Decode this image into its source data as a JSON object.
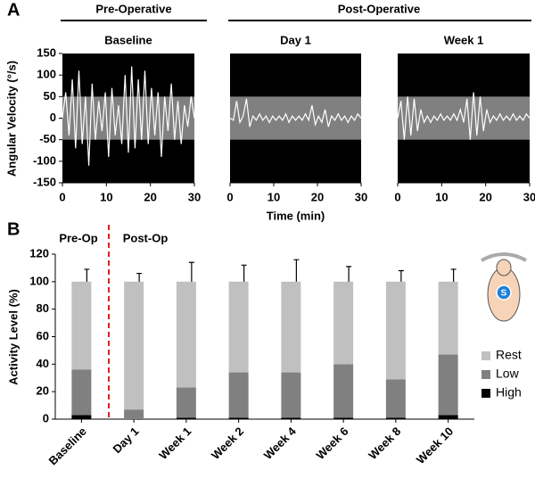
{
  "figure": {
    "panel_a_label": "A",
    "panel_b_label": "B",
    "headers": [
      "Pre-Operative",
      "Post-Operative"
    ],
    "pre_label": "Pre-Op",
    "post_label": "Post-Op",
    "icon_label": "S"
  },
  "chart_data": [
    {
      "type": "line",
      "title": "Baseline",
      "ylabel": "Angular Velocity (°/s)",
      "background": "#000000",
      "band": [
        -50,
        50
      ],
      "band_color": "#808080",
      "color": "#ffffff",
      "x": [
        0,
        0.75,
        1.5,
        2.25,
        3,
        3.75,
        4.5,
        5.25,
        6,
        6.75,
        7.5,
        8.25,
        9,
        9.75,
        10.5,
        11.25,
        12,
        12.75,
        13.5,
        14.25,
        15,
        15.75,
        16.5,
        17.25,
        18,
        18.75,
        19.5,
        20.25,
        21,
        21.75,
        22.5,
        23.25,
        24,
        24.75,
        25.5,
        26.25,
        27,
        27.75,
        28.5,
        29.25,
        30
      ],
      "values": [
        0,
        60,
        -40,
        90,
        -70,
        110,
        -60,
        50,
        -110,
        80,
        -50,
        40,
        -30,
        60,
        -90,
        70,
        -40,
        30,
        -60,
        100,
        -80,
        120,
        -70,
        90,
        -50,
        110,
        -60,
        70,
        -40,
        60,
        -90,
        50,
        -30,
        80,
        -50,
        40,
        -60,
        30,
        -20,
        50,
        0
      ],
      "xlim": [
        0,
        30
      ],
      "xticks": [
        0,
        10,
        20,
        30
      ],
      "ylim": [
        -150,
        150
      ],
      "yticks": [
        150,
        100,
        50,
        0,
        -50,
        -100,
        -150
      ]
    },
    {
      "type": "line",
      "title": "Day 1",
      "xlabel": "Time (min)",
      "background": "#000000",
      "band": [
        -50,
        50
      ],
      "band_color": "#808080",
      "color": "#ffffff",
      "x": [
        0,
        0.75,
        1.5,
        2.25,
        3,
        3.75,
        4.5,
        5.25,
        6,
        6.75,
        7.5,
        8.25,
        9,
        9.75,
        10.5,
        11.25,
        12,
        12.75,
        13.5,
        14.25,
        15,
        15.75,
        16.5,
        17.25,
        18,
        18.75,
        19.5,
        20.25,
        21,
        21.75,
        22.5,
        23.25,
        24,
        24.75,
        25.5,
        26.25,
        27,
        27.75,
        28.5,
        29.25,
        30
      ],
      "values": [
        0,
        -5,
        40,
        -10,
        5,
        45,
        -20,
        5,
        -5,
        10,
        -5,
        5,
        -10,
        5,
        -5,
        5,
        -5,
        10,
        -10,
        5,
        -5,
        5,
        -5,
        10,
        -5,
        30,
        -15,
        5,
        -10,
        20,
        -20,
        5,
        -5,
        10,
        -5,
        5,
        -10,
        5,
        -5,
        10,
        0
      ],
      "xlim": [
        0,
        30
      ],
      "xticks": [
        0,
        10,
        20,
        30
      ],
      "ylim": [
        -150,
        150
      ]
    },
    {
      "type": "line",
      "title": "Week 1",
      "background": "#000000",
      "band": [
        -50,
        50
      ],
      "band_color": "#808080",
      "color": "#ffffff",
      "x": [
        0,
        0.75,
        1.5,
        2.25,
        3,
        3.75,
        4.5,
        5.25,
        6,
        6.75,
        7.5,
        8.25,
        9,
        9.75,
        10.5,
        11.25,
        12,
        12.75,
        13.5,
        14.25,
        15,
        15.75,
        16.5,
        17.25,
        18,
        18.75,
        19.5,
        20.25,
        21,
        21.75,
        22.5,
        23.25,
        24,
        24.75,
        25.5,
        26.25,
        27,
        27.75,
        28.5,
        29.25,
        30
      ],
      "values": [
        0,
        40,
        -50,
        50,
        -40,
        45,
        -30,
        20,
        -10,
        5,
        -10,
        5,
        -5,
        10,
        -5,
        5,
        -5,
        10,
        -5,
        20,
        -10,
        45,
        -50,
        60,
        -40,
        50,
        -30,
        20,
        -10,
        5,
        -5,
        10,
        -5,
        5,
        -5,
        10,
        -5,
        5,
        -5,
        10,
        0
      ],
      "xlim": [
        0,
        30
      ],
      "xticks": [
        0,
        10,
        20,
        30
      ],
      "ylim": [
        -150,
        150
      ]
    },
    {
      "type": "bar",
      "stacked": true,
      "ylabel": "Activity Level (%)",
      "categories": [
        "Baseline",
        "Day 1",
        "Week 1",
        "Week 2",
        "Week 4",
        "Week 6",
        "Week 8",
        "Week 10"
      ],
      "series": [
        {
          "name": "High",
          "color": "#000000",
          "values": [
            3,
            0,
            1,
            1,
            1,
            1,
            1,
            3
          ],
          "errors": [
            1,
            0,
            1,
            1,
            1,
            1,
            1,
            1
          ]
        },
        {
          "name": "Low",
          "color": "#808080",
          "values": [
            33,
            7,
            22,
            33,
            33,
            39,
            28,
            44
          ],
          "errors": [
            9,
            7,
            13,
            12,
            13,
            11,
            7,
            8
          ]
        },
        {
          "name": "Rest",
          "color": "#c0c0c0",
          "values": [
            64,
            93,
            77,
            66,
            66,
            60,
            71,
            53
          ],
          "errors": [
            9,
            6,
            14,
            12,
            16,
            11,
            8,
            9
          ]
        }
      ],
      "ylim": [
        0,
        120
      ],
      "yticks": [
        0,
        20,
        40,
        60,
        80,
        100,
        120
      ]
    }
  ]
}
